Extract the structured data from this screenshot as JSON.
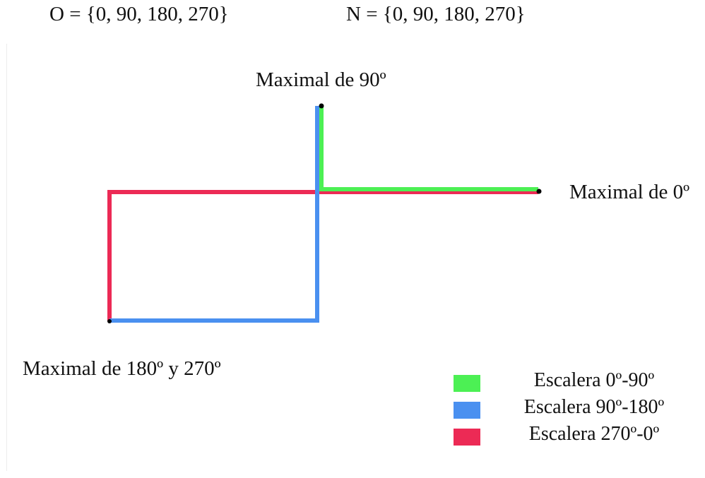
{
  "header": {
    "set_o": "O = {0, 90, 180, 270}",
    "set_n": "N = {0, 90, 180, 270}"
  },
  "diagram": {
    "labels": {
      "maximal_90": "Maximal de 90º",
      "maximal_0": "Maximal de 0º",
      "maximal_180_270": "Maximal de 180º y 270º"
    },
    "colors": {
      "green": "#4cf054",
      "blue": "#4a90f0",
      "red": "#ec2a55",
      "dot": "#000000"
    }
  },
  "legend": {
    "items": [
      {
        "label": "Escalera 0º-90º",
        "color": "#4cf054"
      },
      {
        "label": "Escalera 90º-180º",
        "color": "#4a90f0"
      },
      {
        "label": "Escalera 270º-0º",
        "color": "#ec2a55"
      }
    ]
  }
}
